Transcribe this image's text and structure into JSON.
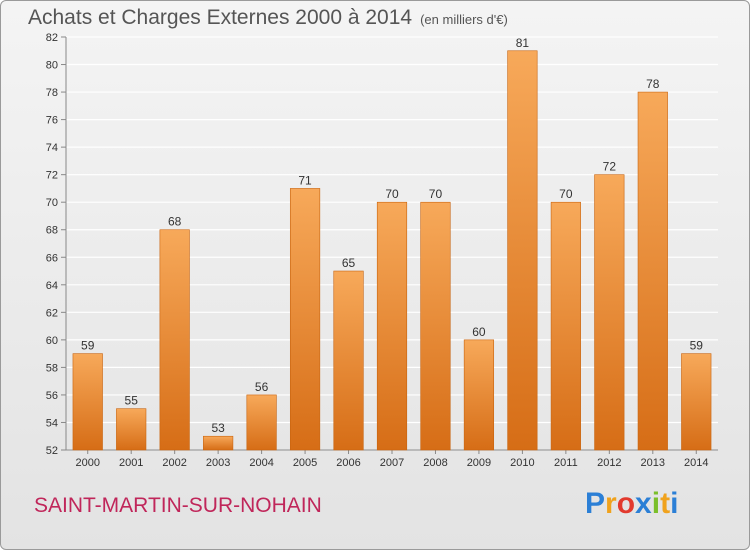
{
  "header": {
    "title": "Achats et Charges Externes 2000 à 2014",
    "unit": "(en milliers d'€)"
  },
  "commune": "SAINT-MARTIN-SUR-NOHAIN",
  "logo": {
    "text": "Proxiti",
    "letters": [
      {
        "char": "P",
        "color": "#2b7fd6"
      },
      {
        "char": "r",
        "color": "#f0a21c"
      },
      {
        "char": "o",
        "color": "#e23a2e"
      },
      {
        "char": "x",
        "color": "#2b7fd6"
      },
      {
        "char": "i",
        "color": "#7bbf2a"
      },
      {
        "char": "t",
        "color": "#f0a21c"
      },
      {
        "char": "i",
        "color": "#2b7fd6"
      }
    ]
  },
  "colors": {
    "bar_top": "#f7a95a",
    "bar_bottom": "#d66d16",
    "bar_edge": "#c8640f",
    "grid": "#ffffff",
    "axis": "#888888"
  },
  "chart_data": {
    "type": "bar",
    "categories": [
      "2000",
      "2001",
      "2002",
      "2003",
      "2004",
      "2005",
      "2006",
      "2007",
      "2008",
      "2009",
      "2010",
      "2011",
      "2012",
      "2013",
      "2014"
    ],
    "values": [
      59,
      55,
      68,
      53,
      56,
      71,
      65,
      70,
      70,
      60,
      81,
      70,
      72,
      78,
      59
    ],
    "ylim": [
      52,
      82
    ],
    "yticks": [
      52,
      54,
      56,
      58,
      60,
      62,
      64,
      66,
      68,
      70,
      72,
      74,
      76,
      78,
      80,
      82
    ],
    "grid": true,
    "title": "Achats et Charges Externes 2000 à 2014",
    "xlabel": "",
    "ylabel": ""
  }
}
